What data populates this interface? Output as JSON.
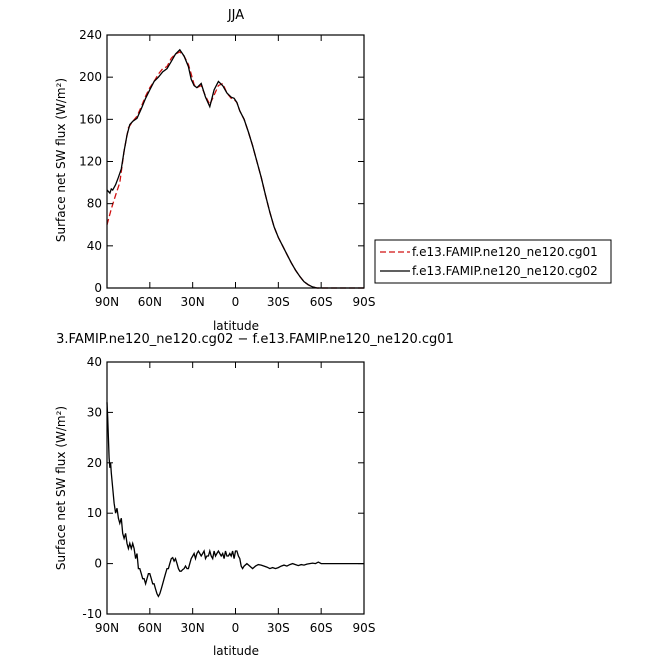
{
  "chart_data": [
    {
      "type": "line",
      "title": "JJA",
      "xlabel": "latitude",
      "ylabel": "Surface net SW flux (W/m²)",
      "xlim": [
        90,
        -90
      ],
      "ylim": [
        0,
        240
      ],
      "yticks": [
        0,
        40,
        80,
        120,
        160,
        200,
        240
      ],
      "xticks": [
        {
          "value": 90,
          "label": "90N"
        },
        {
          "value": 60,
          "label": "60N"
        },
        {
          "value": 30,
          "label": "30N"
        },
        {
          "value": 0,
          "label": "0"
        },
        {
          "value": -30,
          "label": "30S"
        },
        {
          "value": -60,
          "label": "60S"
        },
        {
          "value": -90,
          "label": "90S"
        }
      ],
      "legend_position": "right",
      "series": [
        {
          "name": "f.e13.FAMIP.ne120_ne120.cg01",
          "color": "#d01010",
          "dash": "dashed",
          "x": [
            90,
            87,
            84,
            81,
            78,
            75,
            72,
            69,
            66,
            63,
            60,
            57,
            54,
            51,
            48,
            45,
            42,
            39,
            36,
            33,
            31,
            29,
            27,
            24,
            21,
            18,
            15,
            12,
            9,
            6,
            3,
            1,
            -1,
            -3,
            -6,
            -9,
            -12,
            -15,
            -18,
            -21,
            -24,
            -27,
            -30,
            -33,
            -36,
            -39,
            -42,
            -45,
            -48,
            -51,
            -54,
            -57,
            -60,
            -63,
            -66,
            -69,
            -72,
            -75,
            -78,
            -81,
            -84,
            -87,
            -90
          ],
          "y": [
            60,
            75,
            88,
            100,
            130,
            152,
            158,
            163,
            172,
            182,
            190,
            196,
            203,
            208,
            210,
            218,
            222,
            224,
            220,
            212,
            203,
            193,
            190,
            192,
            182,
            174,
            183,
            192,
            194,
            185,
            180,
            179,
            176,
            168,
            160,
            148,
            135,
            120,
            105,
            88,
            72,
            58,
            48,
            40,
            32,
            24,
            17,
            11,
            6,
            3,
            1,
            0,
            0,
            0,
            0,
            0,
            0,
            0,
            0,
            0,
            0,
            0,
            0
          ]
        },
        {
          "name": "f.e13.FAMIP.ne120_ne120.cg02",
          "color": "#000000",
          "dash": "solid",
          "x": [
            90,
            88,
            87,
            86,
            84,
            82,
            80,
            78,
            76,
            74,
            72,
            69,
            66,
            63,
            60,
            57,
            54,
            51,
            48,
            45,
            42,
            39,
            36,
            33,
            31,
            29,
            27,
            24,
            21,
            18,
            15,
            12,
            9,
            6,
            3,
            1,
            -1,
            -3,
            -6,
            -9,
            -12,
            -15,
            -18,
            -21,
            -24,
            -27,
            -30,
            -33,
            -36,
            -39,
            -42,
            -45,
            -48,
            -51,
            -54,
            -57,
            -60,
            -63,
            -66,
            -69,
            -72,
            -75,
            -78,
            -81,
            -84,
            -87,
            -90
          ],
          "y": [
            93,
            90,
            94,
            93,
            98,
            105,
            113,
            130,
            145,
            155,
            158,
            161,
            170,
            180,
            188,
            196,
            200,
            205,
            208,
            215,
            222,
            226,
            220,
            210,
            198,
            192,
            190,
            194,
            181,
            172,
            188,
            196,
            192,
            185,
            181,
            180,
            176,
            168,
            160,
            148,
            135,
            120,
            105,
            88,
            72,
            58,
            48,
            40,
            32,
            24,
            17,
            11,
            6,
            3,
            1,
            0,
            0,
            0,
            0,
            0,
            0,
            0,
            0,
            0,
            0,
            0,
            0
          ]
        }
      ]
    },
    {
      "type": "line",
      "title": "3.FAMIP.ne120_ne120.cg02 − f.e13.FAMIP.ne120_ne120.cg01",
      "xlabel": "latitude",
      "ylabel": "Surface net SW flux (W/m²)",
      "xlim": [
        90,
        -90
      ],
      "ylim": [
        -10,
        40
      ],
      "yticks": [
        -10,
        0,
        10,
        20,
        30,
        40
      ],
      "xticks": [
        {
          "value": 90,
          "label": "90N"
        },
        {
          "value": 60,
          "label": "60N"
        },
        {
          "value": 30,
          "label": "30N"
        },
        {
          "value": 0,
          "label": "0"
        },
        {
          "value": -30,
          "label": "30S"
        },
        {
          "value": -60,
          "label": "60S"
        },
        {
          "value": -90,
          "label": "90S"
        }
      ],
      "series": [
        {
          "color": "#000000",
          "dash": "solid",
          "x": [
            90,
            89.5,
            89,
            88.5,
            88,
            87.5,
            87,
            86,
            85,
            84,
            83,
            82,
            81,
            80,
            79,
            78,
            77,
            76,
            75,
            74,
            73,
            72,
            71,
            70,
            69,
            68,
            67,
            66,
            65,
            64,
            63,
            62,
            61,
            60,
            59,
            58,
            57,
            56,
            55,
            54,
            53,
            52,
            51,
            50,
            49,
            48,
            47,
            46,
            45,
            44,
            43,
            42,
            41,
            40,
            39,
            38,
            37,
            36,
            35,
            34,
            33,
            32,
            31,
            30,
            29,
            28,
            27,
            26,
            25,
            24,
            23,
            22,
            21,
            20,
            19,
            18,
            17,
            16,
            15,
            14,
            13,
            12,
            11,
            10,
            9,
            8,
            7,
            6,
            5,
            4,
            3,
            2,
            1,
            0,
            -1,
            -2,
            -3,
            -4,
            -5,
            -6,
            -8,
            -10,
            -12,
            -14,
            -16,
            -18,
            -20,
            -22,
            -24,
            -26,
            -28,
            -30,
            -32,
            -34,
            -36,
            -38,
            -40,
            -42,
            -44,
            -46,
            -48,
            -50,
            -52,
            -54,
            -56,
            -58,
            -60,
            -62,
            -64,
            -66,
            -68,
            -70,
            -72,
            -75,
            -78,
            -81,
            -84,
            -87,
            -90
          ],
          "y": [
            32,
            29,
            25,
            21,
            19,
            20,
            18,
            15,
            12,
            10,
            11,
            9,
            8,
            9,
            6,
            5,
            6,
            4,
            3,
            4,
            3,
            4,
            3,
            1,
            2,
            -1,
            -1,
            -2,
            -3,
            -3,
            -4,
            -3,
            -2,
            -2,
            -3,
            -4,
            -4,
            -5,
            -6,
            -6.5,
            -6,
            -5,
            -4,
            -3,
            -2,
            -1,
            -1,
            0,
            1,
            1.2,
            0.5,
            1,
            0,
            -1,
            -1.5,
            -1.5,
            -1.2,
            -1,
            -0.5,
            -1,
            -1,
            0,
            1,
            1.5,
            2,
            1,
            2,
            2.5,
            2,
            1.5,
            2,
            2.5,
            1,
            1.5,
            1.5,
            2.5,
            1.5,
            1,
            2.5,
            1.5,
            2,
            2.5,
            2,
            1.5,
            2,
            1,
            2.5,
            1.5,
            1.5,
            2,
            1.5,
            2.5,
            1,
            2.5,
            2.5,
            1.5,
            1,
            -0.5,
            -1,
            -0.5,
            0,
            -0.5,
            -1,
            -0.5,
            -0.2,
            -0.3,
            -0.5,
            -0.7,
            -1,
            -0.8,
            -1,
            -0.8,
            -0.5,
            -0.3,
            -0.5,
            -0.2,
            0,
            -0.2,
            -0.4,
            -0.2,
            -0.3,
            -0.1,
            0,
            0.1,
            0,
            0.3,
            0,
            0,
            0,
            0,
            0,
            0,
            0,
            0,
            0,
            0,
            0,
            0,
            0
          ]
        }
      ]
    }
  ]
}
